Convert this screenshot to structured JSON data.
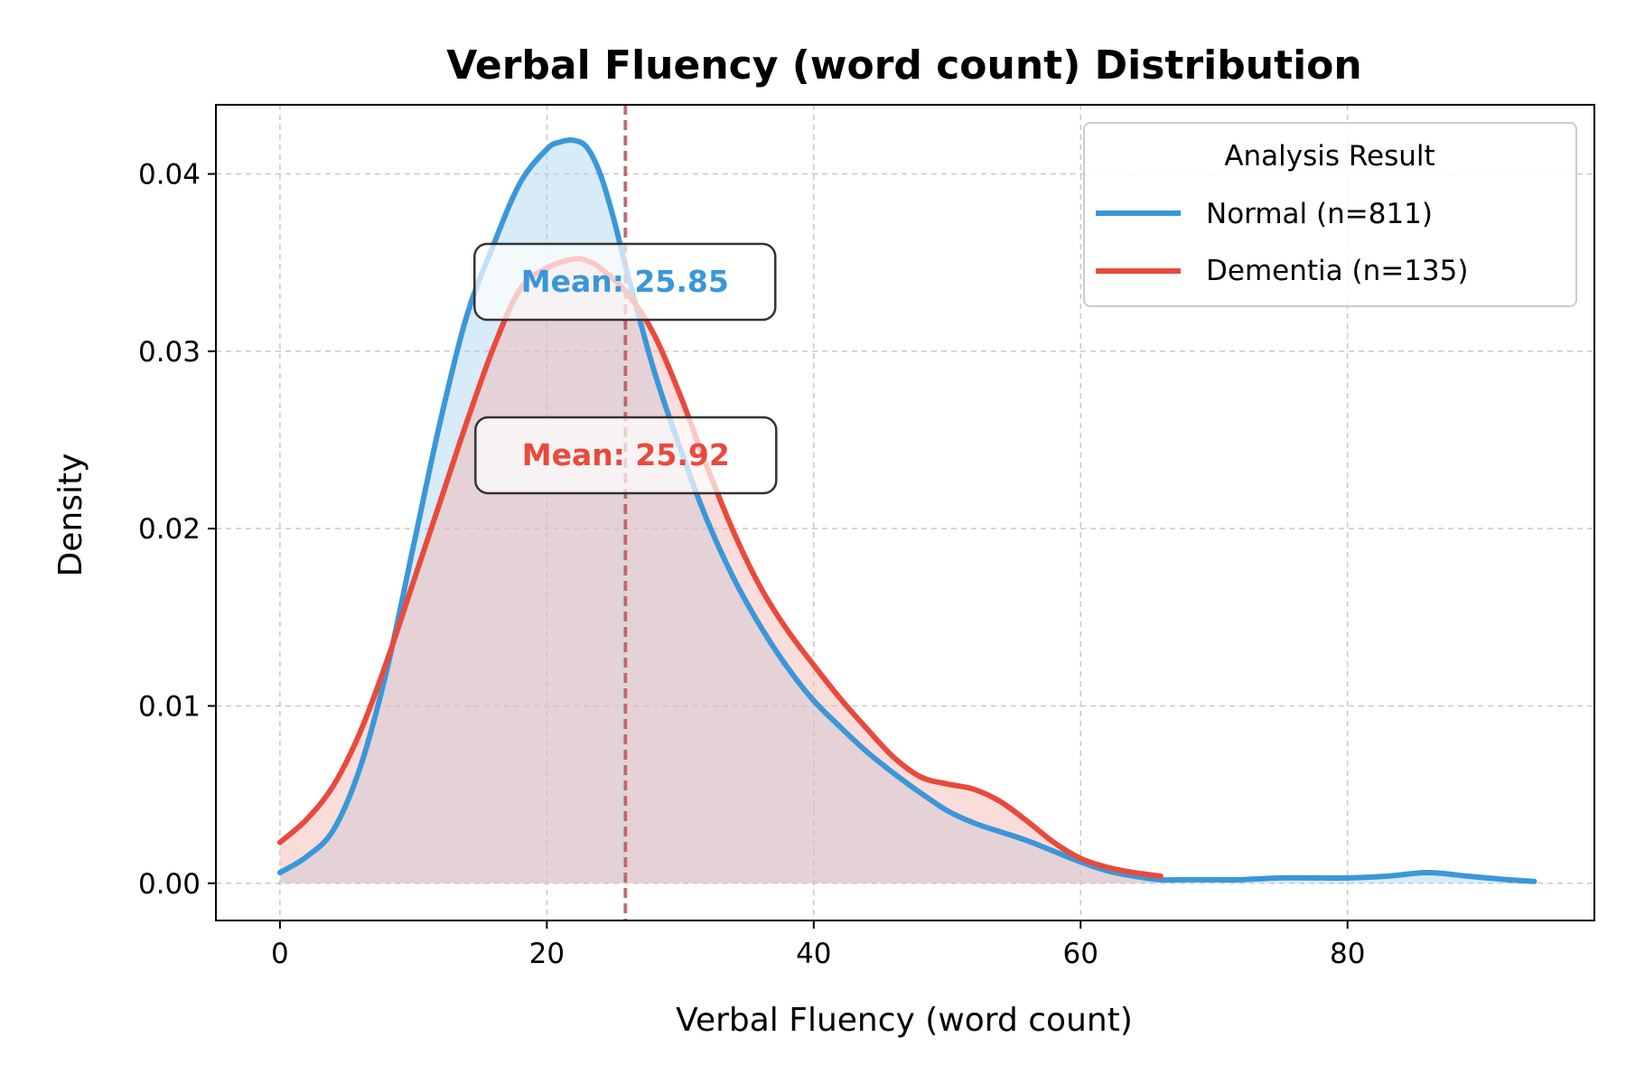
{
  "chart_data": {
    "type": "area",
    "title": "Verbal Fluency (word count) Distribution",
    "xlabel": "Verbal Fluency (word count)",
    "ylabel": "Density",
    "xlim": [
      -4.8,
      98.5
    ],
    "ylim": [
      -0.0021,
      0.0439
    ],
    "x_ticks": [
      0,
      20,
      40,
      60,
      80
    ],
    "y_ticks": [
      0.0,
      0.01,
      0.02,
      0.03,
      0.04
    ],
    "x_tick_labels": [
      "0",
      "20",
      "40",
      "60",
      "80"
    ],
    "y_tick_labels": [
      "0.00",
      "0.01",
      "0.02",
      "0.03",
      "0.04"
    ],
    "grid": true,
    "legend": {
      "title": "Analysis Result",
      "placement": "top-right"
    },
    "series": [
      {
        "name": "Normal (n=811)",
        "color": "#3a97d9",
        "fill": "#a8d2f0",
        "mean": 25.85,
        "mean_label": "Mean: 25.85",
        "x": [
          0,
          2,
          4,
          6,
          8,
          10,
          12,
          14,
          16,
          18,
          20,
          21,
          22,
          23,
          24,
          25,
          26,
          28,
          30,
          32,
          34,
          36,
          38,
          40,
          42,
          44,
          46,
          48,
          50,
          52,
          54,
          56,
          58,
          60,
          62,
          64,
          66,
          68,
          70,
          72,
          75,
          78,
          80,
          83,
          86,
          89,
          92,
          94
        ],
        "y": [
          0.0006,
          0.0015,
          0.003,
          0.0065,
          0.012,
          0.019,
          0.026,
          0.032,
          0.036,
          0.0395,
          0.0414,
          0.0418,
          0.0419,
          0.0415,
          0.04,
          0.0375,
          0.0345,
          0.029,
          0.0245,
          0.0205,
          0.0172,
          0.0145,
          0.0122,
          0.0103,
          0.0088,
          0.0074,
          0.0062,
          0.0051,
          0.0041,
          0.0034,
          0.0029,
          0.0024,
          0.0018,
          0.0012,
          0.0007,
          0.0004,
          0.0002,
          0.0002,
          0.0002,
          0.0002,
          0.0003,
          0.0003,
          0.0003,
          0.0004,
          0.0006,
          0.0004,
          0.0002,
          0.0001
        ]
      },
      {
        "name": "Dementia (n=135)",
        "color": "#e84a3c",
        "fill": "#f5b3ad",
        "mean": 25.92,
        "mean_label": "Mean: 25.92",
        "x": [
          0,
          2,
          4,
          6,
          8,
          10,
          12,
          14,
          16,
          18,
          20,
          22,
          23,
          24,
          26,
          28,
          30,
          32,
          34,
          36,
          38,
          40,
          42,
          44,
          46,
          48,
          50,
          52,
          54,
          56,
          58,
          60,
          62,
          64,
          66
        ],
        "y": [
          0.0023,
          0.0036,
          0.0055,
          0.0085,
          0.0125,
          0.017,
          0.0215,
          0.026,
          0.0302,
          0.0335,
          0.0347,
          0.0352,
          0.0351,
          0.0347,
          0.0333,
          0.031,
          0.0275,
          0.0235,
          0.0198,
          0.0167,
          0.0143,
          0.0123,
          0.0104,
          0.0087,
          0.0071,
          0.006,
          0.0056,
          0.0053,
          0.0046,
          0.0035,
          0.0023,
          0.0014,
          0.0009,
          0.0006,
          0.0004
        ]
      }
    ]
  }
}
